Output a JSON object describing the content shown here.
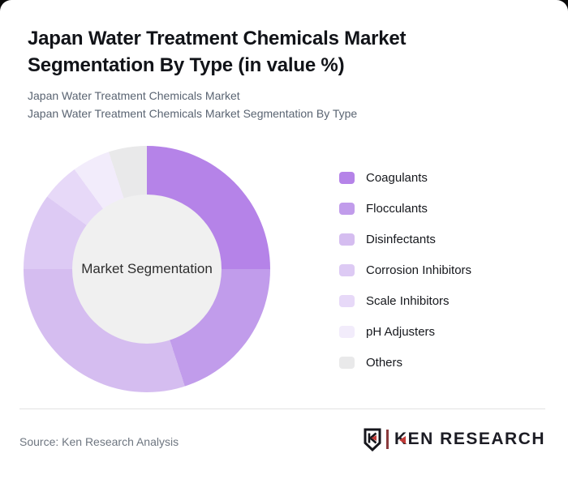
{
  "page": {
    "background": "#0a0a0a",
    "card_background": "#ffffff"
  },
  "header": {
    "title": "Japan Water Treatment Chemicals Market Segmentation By Type (in value %)",
    "subtitle_line1": "Japan Water Treatment Chemicals Market",
    "subtitle_line2": "Japan Water Treatment Chemicals Market Segmentation By Type"
  },
  "chart_data": {
    "type": "pie",
    "variant": "donut",
    "title": "Japan Water Treatment Chemicals Market Segmentation By Type (in value %)",
    "center_label": "Market Segmentation",
    "categories": [
      "Coagulants",
      "Flocculants",
      "Disinfectants",
      "Corrosion Inhibitors",
      "Scale Inhibitors",
      "pH Adjusters",
      "Others"
    ],
    "values": [
      25,
      20,
      30,
      10,
      5,
      5,
      5
    ],
    "unit": "value %",
    "colors": [
      "#b583e8",
      "#c19ceb",
      "#d5bdf0",
      "#ddcaf4",
      "#e7d9f8",
      "#f2ecfb",
      "#e9e9ea"
    ],
    "start_angle_deg": 0,
    "direction": "clockwise",
    "legend_position": "right",
    "inner_radius_ratio": 0.605,
    "center_fill": "#f0f0f0"
  },
  "footer": {
    "source": "Source: Ken Research Analysis",
    "logo": {
      "mark_letter": "K",
      "text_first_letter": "K",
      "text_rest": "EN RESEARCH",
      "text_color": "#1c1c24",
      "accent_color": "#c23b38",
      "bar_color": "#8a3a3c"
    }
  }
}
